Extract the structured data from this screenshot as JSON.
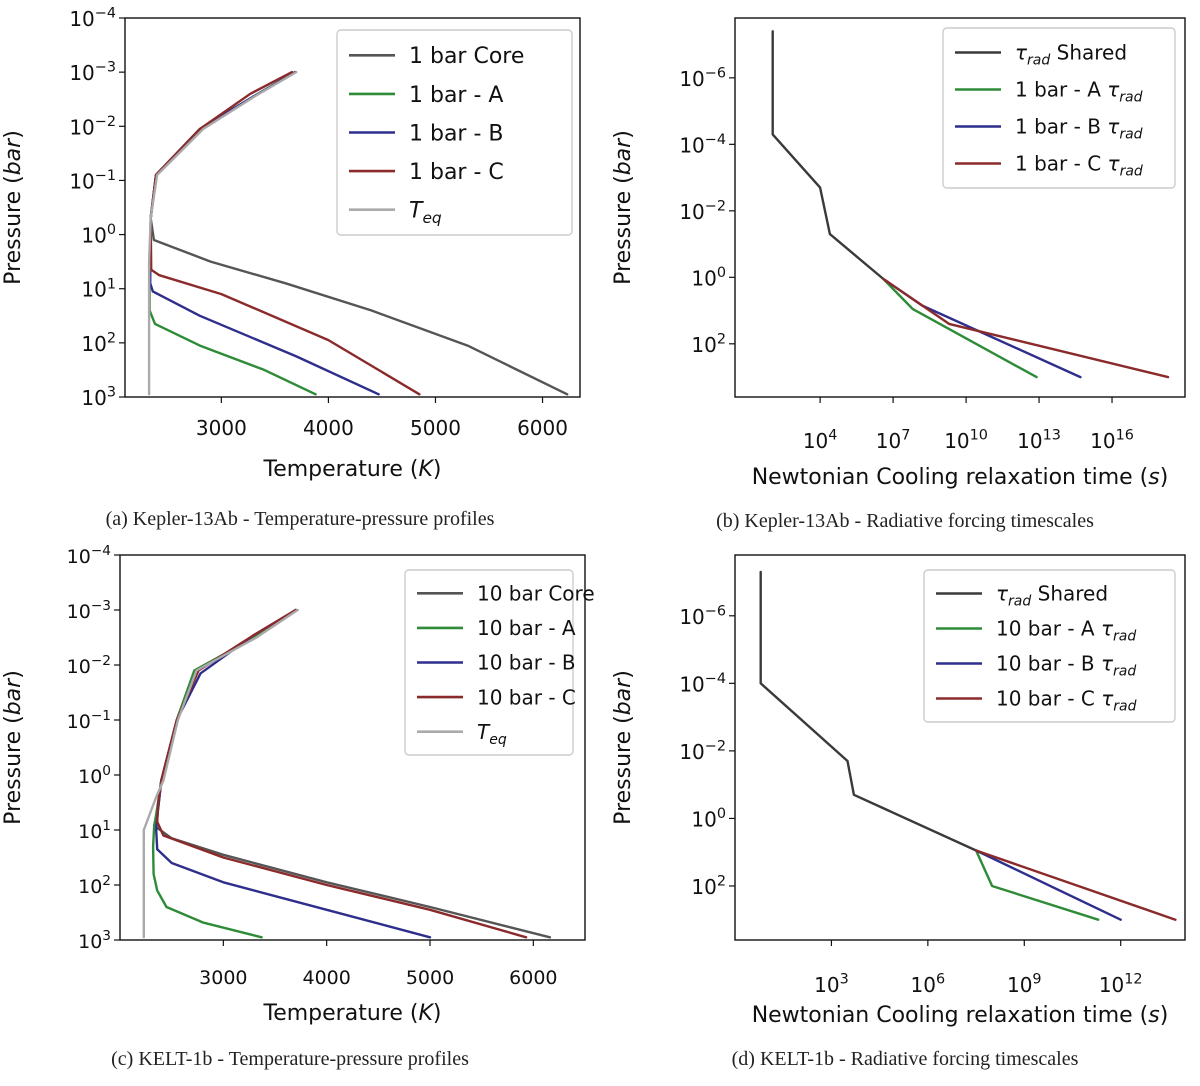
{
  "figure": {
    "captions": [
      "(a) Kepler-13Ab - Temperature-pressure profiles",
      "(b) Kepler-13Ab - Radiative forcing timescales",
      "(c) KELT-1b - Temperature-pressure profiles",
      "(d) KELT-1b - Radiative forcing timescales"
    ]
  },
  "colors": {
    "core": "#555555",
    "A": "#2e8b37",
    "B": "#2e2e8c",
    "C": "#8b2a2a",
    "teq": "#aaaaaa",
    "shared": "#3a3a3a"
  },
  "chart_data": [
    {
      "type": "line",
      "xlabel": "Temperature (K)",
      "ylabel": "Pressure (bar)",
      "xlim": [
        2100,
        6350
      ],
      "ylog": true,
      "yinvert": true,
      "yexp_range": [
        -4,
        3
      ],
      "xticks": [
        3000,
        4000,
        5000,
        6000
      ],
      "xtick_labels": [
        "3000",
        "4000",
        "5000",
        "6000"
      ],
      "yticks_exp": [
        -4,
        -3,
        -2,
        -1,
        0,
        1,
        2,
        3
      ],
      "legend": "top-right",
      "series": [
        {
          "name": "1 bar Core",
          "color_key": "core",
          "points": [
            [
              3690,
              -3
            ],
            [
              3300,
              -2.55
            ],
            [
              2800,
              -1.95
            ],
            [
              2390,
              -1.1
            ],
            [
              2340,
              -0.3
            ],
            [
              2370,
              0.1
            ],
            [
              2900,
              0.5
            ],
            [
              3600,
              0.9
            ],
            [
              4400,
              1.4
            ],
            [
              5300,
              2.05
            ],
            [
              6230,
              2.95
            ]
          ]
        },
        {
          "name": "1 bar - A",
          "color_key": "A",
          "points": [
            [
              3690,
              -3
            ],
            [
              3300,
              -2.55
            ],
            [
              2800,
              -1.95
            ],
            [
              2390,
              -1.1
            ],
            [
              2340,
              -0.3
            ],
            [
              2330,
              0.8
            ],
            [
              2330,
              1.4
            ],
            [
              2380,
              1.65
            ],
            [
              2800,
              2.05
            ],
            [
              3400,
              2.5
            ],
            [
              3880,
              2.95
            ]
          ]
        },
        {
          "name": "1 bar - B",
          "color_key": "B",
          "points": [
            [
              3690,
              -3
            ],
            [
              3300,
              -2.55
            ],
            [
              2800,
              -1.95
            ],
            [
              2390,
              -1.1
            ],
            [
              2340,
              -0.3
            ],
            [
              2335,
              0.9
            ],
            [
              2360,
              1.05
            ],
            [
              2800,
              1.5
            ],
            [
              3700,
              2.25
            ],
            [
              4470,
              2.95
            ]
          ]
        },
        {
          "name": "1 bar - C",
          "color_key": "C",
          "points": [
            [
              3660,
              -3
            ],
            [
              3270,
              -2.6
            ],
            [
              2800,
              -1.95
            ],
            [
              2390,
              -1.1
            ],
            [
              2340,
              -0.3
            ],
            [
              2345,
              0.65
            ],
            [
              2420,
              0.75
            ],
            [
              3000,
              1.1
            ],
            [
              4000,
              1.95
            ],
            [
              4850,
              2.95
            ]
          ]
        },
        {
          "name": "T_eq",
          "color_key": "teq",
          "points": [
            [
              3700,
              -3
            ],
            [
              3310,
              -2.55
            ],
            [
              2830,
              -1.95
            ],
            [
              2400,
              -1.1
            ],
            [
              2340,
              -0.3
            ],
            [
              2325,
              0.5
            ],
            [
              2325,
              2.95
            ]
          ]
        }
      ]
    },
    {
      "type": "line",
      "xlabel": "Newtonian Cooling relaxation time (s)",
      "ylabel": "Pressure (bar)",
      "xlog": true,
      "xexp_range": [
        0.5,
        19.0
      ],
      "ylog": true,
      "yinvert": true,
      "yexp_range": [
        -7.8,
        3.6
      ],
      "xticks_exp": [
        4,
        7,
        10,
        13,
        16
      ],
      "yticks_exp": [
        -6,
        -4,
        -2,
        0,
        2
      ],
      "legend": "top-right",
      "series": [
        {
          "name": "τrad Shared",
          "color_key": "shared",
          "points": [
            [
              2.05,
              -7.4
            ],
            [
              2.05,
              -4.3
            ],
            [
              4.0,
              -2.7
            ],
            [
              4.4,
              -1.3
            ],
            [
              6.6,
              0.05
            ]
          ]
        },
        {
          "name": "1 bar - A τrad",
          "color_key": "A",
          "points": [
            [
              6.6,
              0.05
            ],
            [
              7.8,
              0.95
            ],
            [
              12.9,
              3.0
            ]
          ]
        },
        {
          "name": "1 bar - B τrad",
          "color_key": "B",
          "points": [
            [
              6.6,
              0.05
            ],
            [
              8.2,
              0.85
            ],
            [
              14.7,
              3.0
            ]
          ]
        },
        {
          "name": "1 bar - C τrad",
          "color_key": "C",
          "points": [
            [
              6.6,
              0.05
            ],
            [
              9.3,
              1.4
            ],
            [
              18.3,
              3.0
            ]
          ]
        }
      ]
    },
    {
      "type": "line",
      "xlabel": "Temperature (K)",
      "ylabel": "Pressure (bar)",
      "xlim": [
        2000,
        6500
      ],
      "ylog": true,
      "yinvert": true,
      "yexp_range": [
        -4,
        3
      ],
      "xticks": [
        3000,
        4000,
        5000,
        6000
      ],
      "xtick_labels": [
        "3000",
        "4000",
        "5000",
        "6000"
      ],
      "yticks_exp": [
        -4,
        -3,
        -2,
        -1,
        0,
        1,
        2,
        3
      ],
      "legend": "top-right",
      "series": [
        {
          "name": "10 bar Core",
          "color_key": "core",
          "points": [
            [
              3700,
              -3
            ],
            [
              3300,
              -2.5
            ],
            [
              2720,
              -1.9
            ],
            [
              2550,
              -1.0
            ],
            [
              2400,
              0.1
            ],
            [
              2370,
              0.6
            ],
            [
              2330,
              0.92
            ],
            [
              2500,
              1.15
            ],
            [
              3000,
              1.45
            ],
            [
              4000,
              1.95
            ],
            [
              5000,
              2.4
            ],
            [
              6160,
              2.95
            ]
          ]
        },
        {
          "name": "10 bar - A",
          "color_key": "A",
          "points": [
            [
              3700,
              -3
            ],
            [
              3300,
              -2.5
            ],
            [
              2720,
              -1.9
            ],
            [
              2550,
              -1.0
            ],
            [
              2400,
              0.1
            ],
            [
              2360,
              0.6
            ],
            [
              2330,
              0.95
            ],
            [
              2320,
              1.3
            ],
            [
              2325,
              1.8
            ],
            [
              2360,
              2.1
            ],
            [
              2450,
              2.4
            ],
            [
              2800,
              2.68
            ],
            [
              3370,
              2.95
            ]
          ]
        },
        {
          "name": "10 bar - B",
          "color_key": "B",
          "points": [
            [
              3700,
              -3
            ],
            [
              3300,
              -2.55
            ],
            [
              2780,
              -1.85
            ],
            [
              2550,
              -1.0
            ],
            [
              2400,
              0.1
            ],
            [
              2370,
              0.6
            ],
            [
              2350,
              1.0
            ],
            [
              2360,
              1.35
            ],
            [
              2500,
              1.6
            ],
            [
              3000,
              1.95
            ],
            [
              4000,
              2.45
            ],
            [
              5000,
              2.95
            ]
          ]
        },
        {
          "name": "10 bar - C",
          "color_key": "C",
          "points": [
            [
              3700,
              -3
            ],
            [
              3300,
              -2.55
            ],
            [
              2760,
              -1.9
            ],
            [
              2550,
              -1.0
            ],
            [
              2400,
              0.1
            ],
            [
              2370,
              0.5
            ],
            [
              2360,
              0.85
            ],
            [
              2420,
              1.1
            ],
            [
              3000,
              1.5
            ],
            [
              4000,
              2.0
            ],
            [
              5000,
              2.45
            ],
            [
              5930,
              2.95
            ]
          ]
        },
        {
          "name": "T_eq",
          "color_key": "teq",
          "points": [
            [
              3720,
              -3
            ],
            [
              3320,
              -2.5
            ],
            [
              2740,
              -1.9
            ],
            [
              2560,
              -1.0
            ],
            [
              2420,
              0.1
            ],
            [
              2350,
              0.4
            ],
            [
              2230,
              1.0
            ],
            [
              2230,
              2.95
            ]
          ]
        }
      ]
    },
    {
      "type": "line",
      "xlabel": "Newtonian Cooling relaxation time (s)",
      "ylabel": "Pressure (bar)",
      "xlog": true,
      "xexp_range": [
        0.0,
        14.0
      ],
      "ylog": true,
      "yinvert": true,
      "yexp_range": [
        -7.8,
        3.6
      ],
      "xticks_exp": [
        3,
        6,
        9,
        12
      ],
      "yticks_exp": [
        -6,
        -4,
        -2,
        0,
        2
      ],
      "legend": "top-right",
      "series": [
        {
          "name": "τrad Shared",
          "color_key": "shared",
          "points": [
            [
              0.8,
              -7.3
            ],
            [
              0.8,
              -4.0
            ],
            [
              3.5,
              -1.7
            ],
            [
              3.7,
              -0.7
            ],
            [
              7.5,
              0.95
            ]
          ]
        },
        {
          "name": "10 bar - A τrad",
          "color_key": "A",
          "points": [
            [
              7.5,
              0.95
            ],
            [
              8.0,
              2.0
            ],
            [
              11.3,
              3.0
            ]
          ]
        },
        {
          "name": "10 bar - B τrad",
          "color_key": "B",
          "points": [
            [
              7.5,
              0.95
            ],
            [
              12.0,
              3.0
            ]
          ]
        },
        {
          "name": "10 bar - C τrad",
          "color_key": "C",
          "points": [
            [
              7.5,
              0.95
            ],
            [
              13.7,
              3.0
            ]
          ]
        }
      ]
    }
  ]
}
